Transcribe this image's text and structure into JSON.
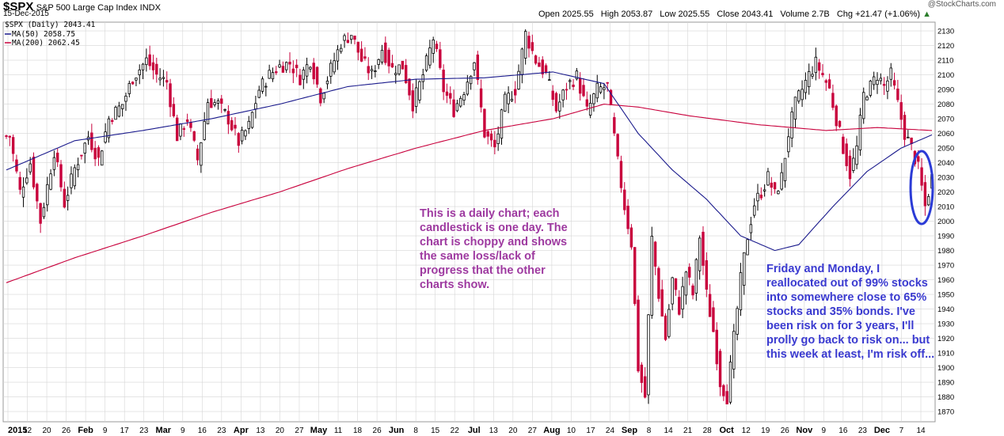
{
  "header": {
    "symbol": "$SPX",
    "name": "S&P 500 Large Cap Index",
    "exchange": "INDX",
    "date": "15-Dec-2015",
    "watermark": "@StockCharts.com",
    "open_label": "Open",
    "open": "2025.55",
    "high_label": "High",
    "high": "2053.87",
    "low_label": "Low",
    "low": "2025.55",
    "close_label": "Close",
    "close": "2043.41",
    "volume_label": "Volume",
    "volume": "2.7B",
    "chg_label": "Chg",
    "chg": "+21.47 (+1.06%)",
    "chg_arrow": "▲"
  },
  "legend": {
    "price": "$SPX (Daily) 2043.41",
    "ma50": "MA(50) 2058.75",
    "ma200": "MA(200) 2062.45"
  },
  "annotations": {
    "left": "This is a daily chart; each candlestick is one day. The chart is choppy and shows the same loss/lack of progress that the other charts show.",
    "right": "Friday and Monday, I reallocated out of 99% stocks into somewhere close to 65% stocks and 35% bonds. I've been risk on for 3 years, I'll prolly go back to risk on... but this week at least, I'm risk off..."
  },
  "colors": {
    "up": "#000000",
    "down": "#c8003c",
    "ma50": "#1a1a8c",
    "ma200": "#c8003c",
    "circle": "#2b3bd6",
    "grid": "#d6d6d6"
  },
  "chart_data": {
    "type": "candlestick",
    "ylim": [
      1863,
      2136
    ],
    "y_ticks": [
      1870,
      1880,
      1890,
      1900,
      1910,
      1920,
      1930,
      1940,
      1950,
      1960,
      1970,
      1980,
      1990,
      2000,
      2010,
      2020,
      2030,
      2040,
      2050,
      2060,
      2070,
      2080,
      2090,
      2100,
      2110,
      2120,
      2130
    ],
    "x_tick_labels": [
      "2015",
      "12",
      "20",
      "26",
      "Feb",
      "9",
      "17",
      "23",
      "Mar",
      "9",
      "16",
      "23",
      "Apr",
      "13",
      "20",
      "27",
      "May",
      "11",
      "18",
      "26",
      "Jun",
      "8",
      "15",
      "22",
      "Jul",
      "13",
      "20",
      "27",
      "Aug",
      "10",
      "17",
      "24",
      "Sep",
      "8",
      "14",
      "21",
      "28",
      "Oct",
      "12",
      "19",
      "26",
      "Nov",
      "9",
      "16",
      "23",
      "Dec",
      "7",
      "14"
    ],
    "x_ticks_bold": [
      "2015",
      "Feb",
      "Mar",
      "Apr",
      "May",
      "Jun",
      "Jul",
      "Aug",
      "Sep",
      "Oct",
      "Nov",
      "Dec"
    ],
    "close_path": [
      [
        1,
        2058
      ],
      [
        4,
        2020
      ],
      [
        7,
        2040
      ],
      [
        10,
        2000
      ],
      [
        14,
        2048
      ],
      [
        17,
        2012
      ],
      [
        20,
        2036
      ],
      [
        24,
        2058
      ],
      [
        27,
        2042
      ],
      [
        30,
        2070
      ],
      [
        34,
        2080
      ],
      [
        37,
        2098
      ],
      [
        41,
        2110
      ],
      [
        44,
        2100
      ],
      [
        47,
        2095
      ],
      [
        50,
        2058
      ],
      [
        53,
        2070
      ],
      [
        56,
        2042
      ],
      [
        59,
        2082
      ],
      [
        62,
        2080
      ],
      [
        65,
        2070
      ],
      [
        68,
        2054
      ],
      [
        71,
        2065
      ],
      [
        74,
        2090
      ],
      [
        77,
        2100
      ],
      [
        80,
        2106
      ],
      [
        83,
        2108
      ],
      [
        86,
        2098
      ],
      [
        89,
        2110
      ],
      [
        92,
        2085
      ],
      [
        95,
        2104
      ],
      [
        98,
        2122
      ],
      [
        101,
        2128
      ],
      [
        104,
        2110
      ],
      [
        107,
        2100
      ],
      [
        110,
        2118
      ],
      [
        113,
        2104
      ],
      [
        116,
        2106
      ],
      [
        119,
        2080
      ],
      [
        122,
        2100
      ],
      [
        125,
        2125
      ],
      [
        128,
        2090
      ],
      [
        131,
        2076
      ],
      [
        134,
        2090
      ],
      [
        137,
        2110
      ],
      [
        140,
        2060
      ],
      [
        143,
        2050
      ],
      [
        146,
        2082
      ],
      [
        149,
        2090
      ],
      [
        152,
        2128
      ],
      [
        155,
        2110
      ],
      [
        158,
        2100
      ],
      [
        161,
        2076
      ],
      [
        164,
        2092
      ],
      [
        167,
        2099
      ],
      [
        170,
        2075
      ],
      [
        173,
        2090
      ],
      [
        176,
        2092
      ],
      [
        179,
        2040
      ],
      [
        181,
        2010
      ],
      [
        183,
        1985
      ],
      [
        185,
        1900
      ],
      [
        187,
        1880
      ],
      [
        189,
        1988
      ],
      [
        191,
        1950
      ],
      [
        193,
        1920
      ],
      [
        195,
        1960
      ],
      [
        197,
        1940
      ],
      [
        199,
        1966
      ],
      [
        201,
        1950
      ],
      [
        203,
        1990
      ],
      [
        205,
        1950
      ],
      [
        207,
        1925
      ],
      [
        209,
        1890
      ],
      [
        211,
        1880
      ],
      [
        213,
        1920
      ],
      [
        215,
        1960
      ],
      [
        217,
        1990
      ],
      [
        219,
        2012
      ],
      [
        221,
        2020
      ],
      [
        223,
        2030
      ],
      [
        225,
        2018
      ],
      [
        227,
        2030
      ],
      [
        229,
        2060
      ],
      [
        231,
        2080
      ],
      [
        233,
        2090
      ],
      [
        235,
        2100
      ],
      [
        237,
        2108
      ],
      [
        239,
        2100
      ],
      [
        241,
        2090
      ],
      [
        243,
        2070
      ],
      [
        245,
        2050
      ],
      [
        247,
        2032
      ],
      [
        249,
        2050
      ],
      [
        251,
        2086
      ],
      [
        253,
        2092
      ],
      [
        255,
        2100
      ],
      [
        257,
        2092
      ],
      [
        259,
        2100
      ],
      [
        261,
        2080
      ],
      [
        263,
        2060
      ],
      [
        265,
        2050
      ],
      [
        267,
        2036
      ],
      [
        269,
        2010
      ],
      [
        271,
        2030
      ]
    ],
    "series": [
      {
        "name": "MA(50)",
        "values_path": [
          [
            0,
            2035
          ],
          [
            20,
            2055
          ],
          [
            40,
            2062
          ],
          [
            60,
            2070
          ],
          [
            80,
            2080
          ],
          [
            100,
            2092
          ],
          [
            120,
            2097
          ],
          [
            140,
            2098
          ],
          [
            160,
            2102
          ],
          [
            175,
            2094
          ],
          [
            185,
            2060
          ],
          [
            195,
            2035
          ],
          [
            205,
            2015
          ],
          [
            215,
            1990
          ],
          [
            225,
            1980
          ],
          [
            232,
            1984
          ],
          [
            242,
            2010
          ],
          [
            252,
            2034
          ],
          [
            262,
            2050
          ],
          [
            271,
            2059
          ]
        ]
      },
      {
        "name": "MA(200)",
        "values_path": [
          [
            0,
            1958
          ],
          [
            20,
            1975
          ],
          [
            40,
            1990
          ],
          [
            60,
            2006
          ],
          [
            80,
            2020
          ],
          [
            100,
            2036
          ],
          [
            120,
            2050
          ],
          [
            140,
            2062
          ],
          [
            160,
            2070
          ],
          [
            175,
            2080
          ],
          [
            185,
            2078
          ],
          [
            200,
            2072
          ],
          [
            220,
            2066
          ],
          [
            240,
            2062
          ],
          [
            255,
            2064
          ],
          [
            271,
            2062
          ]
        ]
      }
    ]
  }
}
